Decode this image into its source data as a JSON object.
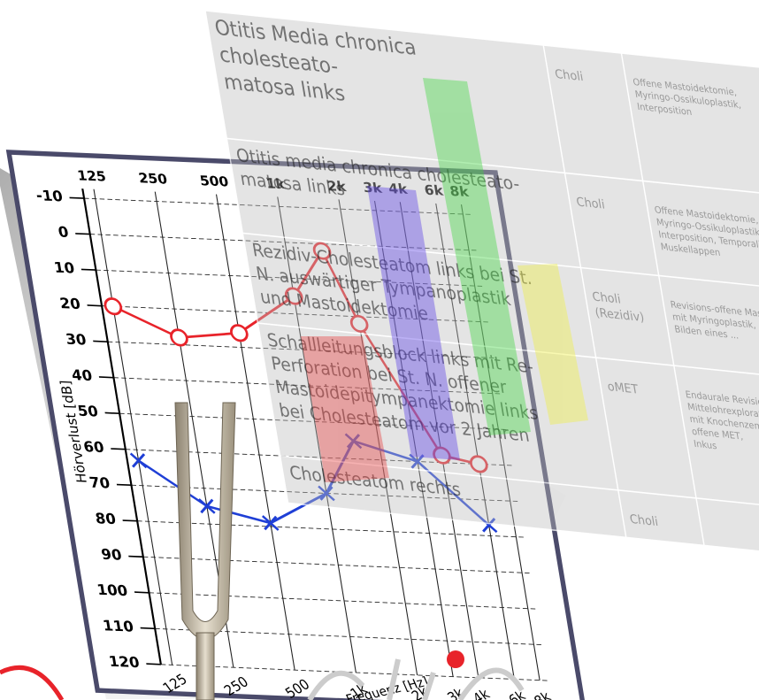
{
  "audiogram": {
    "ylabel": "Hörverlust [dB]",
    "xlabel": "Frequenz [Hz]",
    "xlim": [
      110,
      9000
    ],
    "ylim": [
      -10,
      120
    ],
    "yticks": [
      -10,
      0,
      10,
      20,
      30,
      40,
      50,
      60,
      70,
      80,
      90,
      100,
      110,
      120
    ],
    "top_xticks": [
      125,
      250,
      500,
      {
        "value": 1000,
        "label": "1k"
      },
      {
        "value": 2000,
        "label": "2k"
      },
      {
        "value": 3000,
        "label": "3k"
      },
      {
        "value": 4000,
        "label": "4k"
      },
      {
        "value": 6000,
        "label": "6k"
      },
      {
        "value": 8000,
        "label": "8k"
      }
    ],
    "bottom_xticks": [
      125,
      250,
      500,
      {
        "value": 1000,
        "label": "1k"
      },
      {
        "value": 2000,
        "label": "2k"
      },
      {
        "value": 3000,
        "label": "3k"
      },
      {
        "value": 4000,
        "label": "4k"
      },
      {
        "value": 6000,
        "label": "6k"
      },
      {
        "value": 8000,
        "label": "8k"
      }
    ],
    "series": [
      {
        "color": "#e8232a",
        "marker": "circle",
        "x": [
          125,
          250,
          500,
          1000,
          1500,
          2000,
          4000,
          6000
        ],
        "values": [
          20,
          28,
          26,
          15,
          2,
          22,
          58,
          60
        ]
      },
      {
        "color": "#1f3fd6",
        "marker": "x",
        "x": [
          125,
          250,
          500,
          1000,
          1500,
          3000,
          6000
        ],
        "values": [
          63,
          75,
          79,
          70,
          55,
          60,
          77
        ]
      }
    ]
  },
  "table": {
    "rows": [
      [
        [
          "Otitis Media chronica",
          "cholesteato-",
          "matosa links"
        ],
        [
          "Choli"
        ],
        [
          "Offene Mastoidektomie,",
          "Myringo-Ossikuloplastik,",
          "Interposition"
        ]
      ],
      [
        [
          "Otitis media chronica cholesteato-",
          "matosa links"
        ],
        [
          "Choli"
        ],
        [
          "Offene Mastoidektomie,",
          "Myringo-Ossikuloplastik,",
          "Interposition, Temporalis-",
          "Muskellappen"
        ]
      ],
      [
        [
          "Rezidiv-Cholesteatom links bei St.",
          "N. auswärtiger Tympanoplastik",
          "und Mastoidektomie"
        ],
        [
          "Choli",
          "(Rezidiv)"
        ],
        [
          "Revisions-offene Mastoid.",
          "mit Myringoplastik,",
          "Bilden eines ..."
        ]
      ],
      [
        [
          "Schallleitungsblock links mit Re-",
          "Perforation bei St. N. offener",
          "Mastoidepitympanektomie links",
          "bei Cholesteatom vor 2 Jahren"
        ],
        [
          "oMET"
        ],
        [
          "Endaurale Revision,",
          "Mittelohrexploration",
          "mit Knochenzement",
          "offene MET,",
          "Inkus"
        ]
      ],
      [
        [
          "Cholesteatom rechts"
        ],
        [
          "Choli"
        ]
      ]
    ]
  }
}
